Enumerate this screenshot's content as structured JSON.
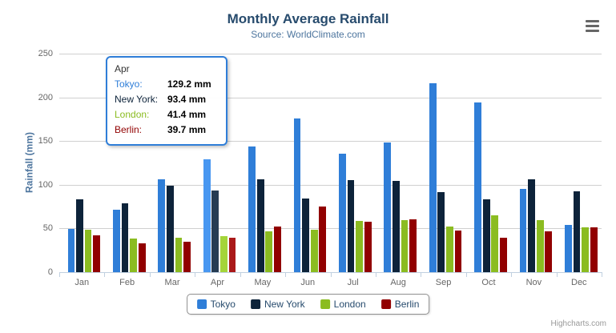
{
  "chart": {
    "title": "Monthly Average Rainfall",
    "subtitle": "Source: WorldClimate.com",
    "credits": "Highcharts.com"
  },
  "colors": {
    "title": "#274b6d",
    "subtitle": "#4d759e",
    "axis_title": "#4d759e",
    "axis_label": "#666666",
    "grid": "#d0d0d0",
    "axis_line": "#c0d0e0",
    "legend_text": "#274b6d",
    "legend_border": "#909090",
    "tooltip_border": "#2f7ed8",
    "credits": "#999999",
    "menu_icon": "#666666"
  },
  "chart_data": {
    "type": "bar",
    "title": "Monthly Average Rainfall",
    "subtitle": "Source: WorldClimate.com",
    "xlabel": "",
    "ylabel": "Rainfall (mm)",
    "ylim": [
      0,
      250
    ],
    "yticks": [
      0,
      50,
      100,
      150,
      200,
      250
    ],
    "grid": true,
    "legend_position": "bottom",
    "categories": [
      "Jan",
      "Feb",
      "Mar",
      "Apr",
      "May",
      "Jun",
      "Jul",
      "Aug",
      "Sep",
      "Oct",
      "Nov",
      "Dec"
    ],
    "hovered_category": "Apr",
    "series": [
      {
        "name": "Tokyo",
        "color": "#2f7ed8",
        "hover_color": "#4897f1",
        "values": [
          49.9,
          71.5,
          106.4,
          129.2,
          144.0,
          176.0,
          135.6,
          148.5,
          216.4,
          194.1,
          95.6,
          54.4
        ]
      },
      {
        "name": "New York",
        "color": "#0d233a",
        "hover_color": "#263c53",
        "values": [
          83.6,
          78.8,
          98.5,
          93.4,
          106.0,
          84.5,
          105.0,
          104.3,
          91.2,
          83.5,
          106.6,
          92.3
        ]
      },
      {
        "name": "London",
        "color": "#8bbc21",
        "hover_color": "#a4d53a",
        "values": [
          48.9,
          38.8,
          39.3,
          41.4,
          47.0,
          48.3,
          59.0,
          59.6,
          52.4,
          65.2,
          59.3,
          51.2
        ]
      },
      {
        "name": "Berlin",
        "color": "#910000",
        "hover_color": "#aa1919",
        "values": [
          42.4,
          33.2,
          34.5,
          39.7,
          52.6,
          75.5,
          57.4,
          60.4,
          47.6,
          39.1,
          46.8,
          51.1
        ]
      }
    ]
  },
  "tooltip": {
    "header": "Apr",
    "rows": [
      {
        "label": "Tokyo:",
        "value": "129.2 mm",
        "color": "#2f7ed8"
      },
      {
        "label": "New York:",
        "value": "93.4 mm",
        "color": "#0d233a"
      },
      {
        "label": "London:",
        "value": "41.4 mm",
        "color": "#8bbc21"
      },
      {
        "label": "Berlin:",
        "value": "39.7 mm",
        "color": "#910000"
      }
    ]
  },
  "legend": {
    "items": [
      {
        "label": "Tokyo",
        "color": "#2f7ed8"
      },
      {
        "label": "New York",
        "color": "#0d233a"
      },
      {
        "label": "London",
        "color": "#8bbc21"
      },
      {
        "label": "Berlin",
        "color": "#910000"
      }
    ]
  }
}
